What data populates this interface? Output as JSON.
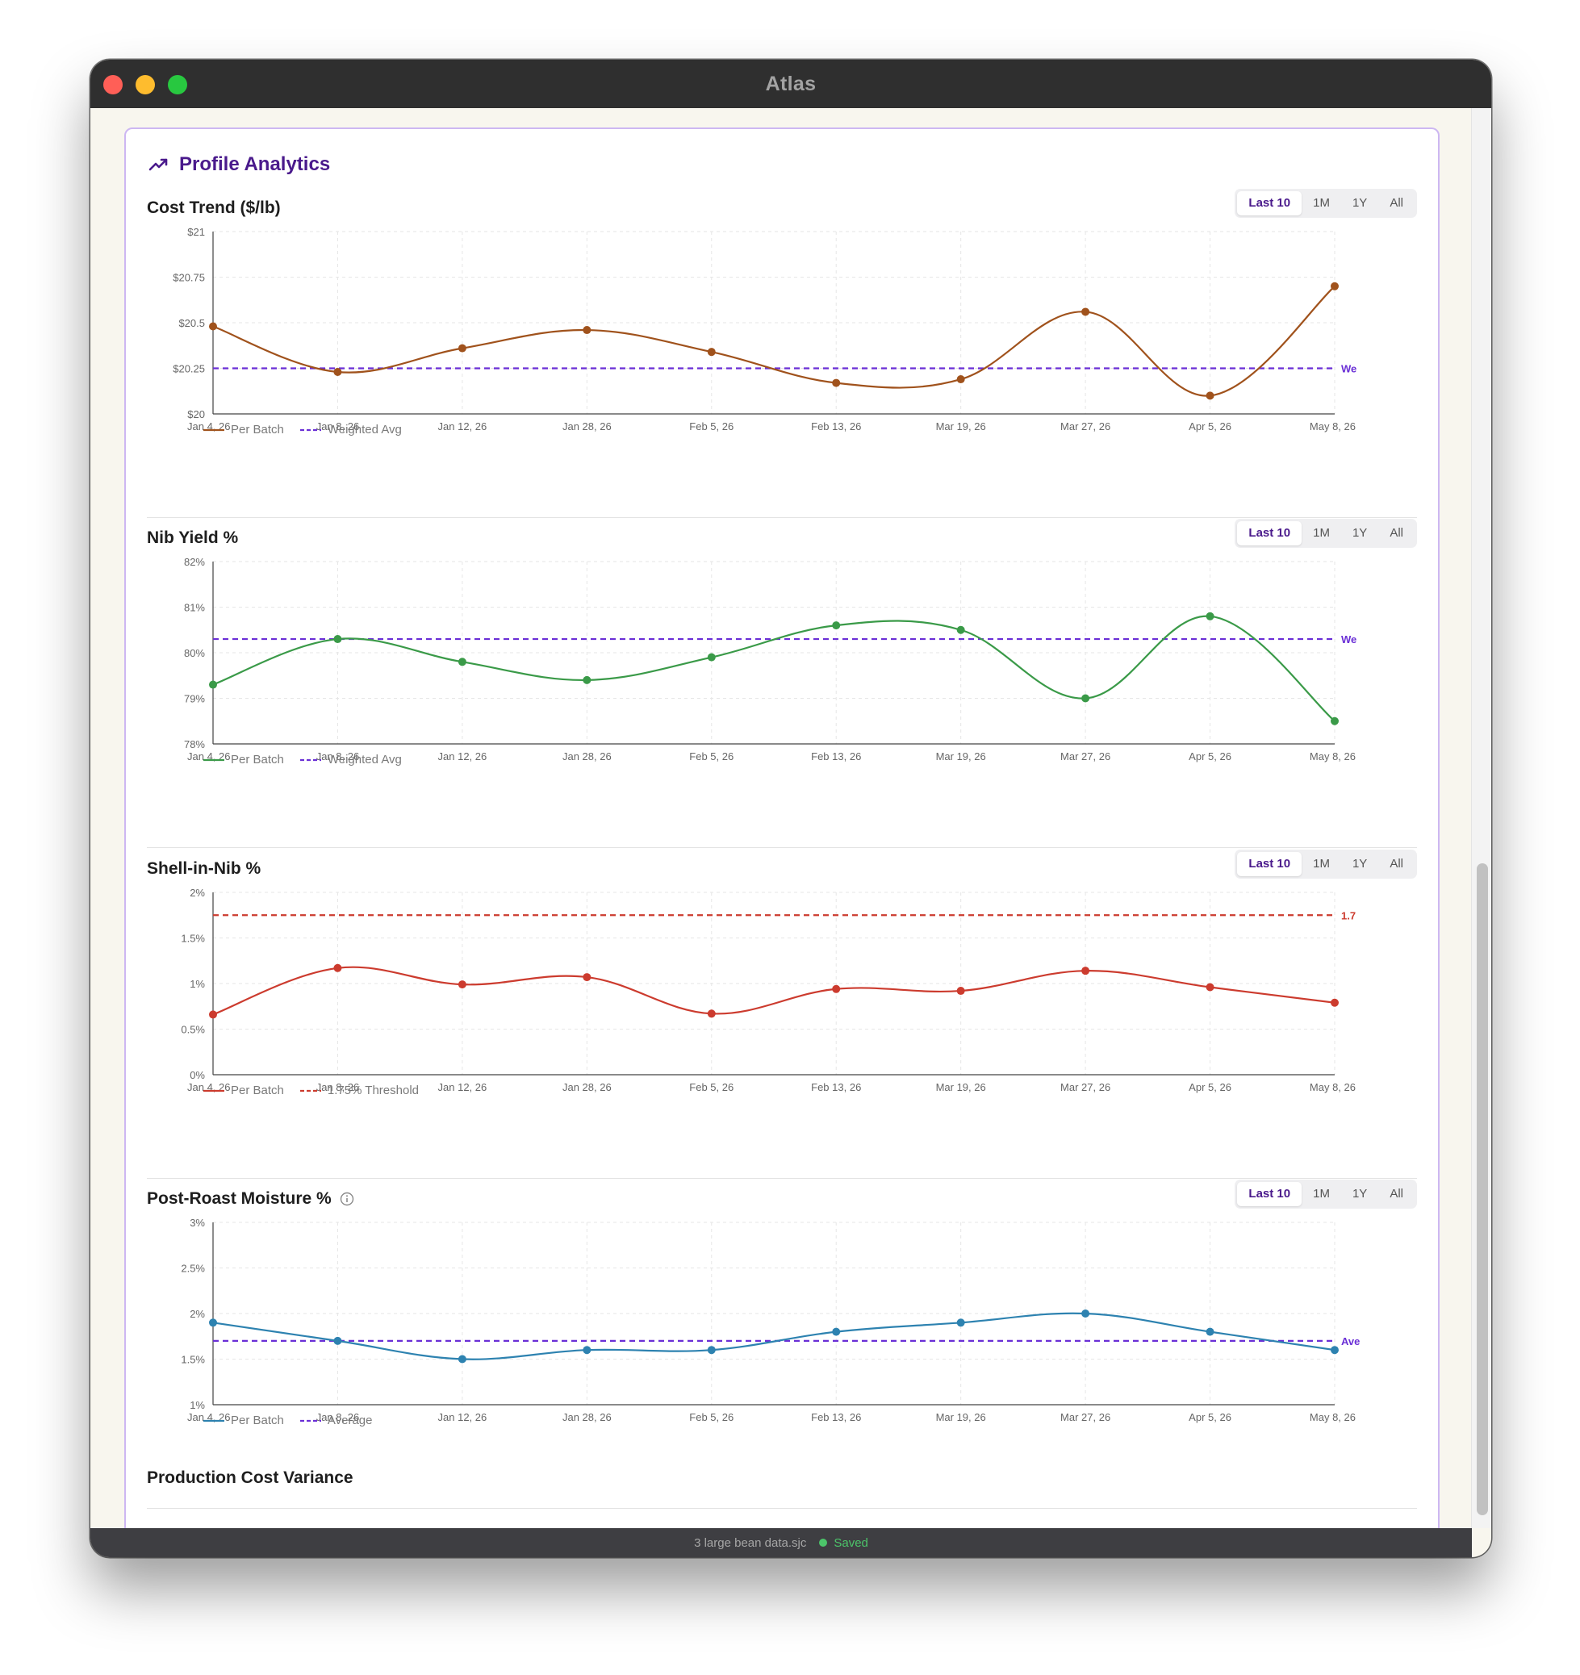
{
  "window": {
    "title": "Atlas"
  },
  "panel": {
    "title": "Profile Analytics",
    "next_section_title": "Production Cost Variance"
  },
  "range_buttons": [
    "Last 10",
    "1M",
    "1Y",
    "All"
  ],
  "charts": [
    {
      "title": "Cost Trend ($/lb)",
      "series_color": "#a0521c",
      "ref_color": "#6a2fd6",
      "legend": [
        "Per Batch",
        "Weighted Avg"
      ],
      "ref_label": "We",
      "has_info": false
    },
    {
      "title": "Nib Yield %",
      "series_color": "#3a9a48",
      "ref_color": "#6a2fd6",
      "legend": [
        "Per Batch",
        "Weighted Avg"
      ],
      "ref_label": "We",
      "has_info": false
    },
    {
      "title": "Shell-in-Nib %",
      "series_color": "#cc3b2e",
      "ref_color": "#cc3b2e",
      "legend": [
        "Per Batch",
        "1.75% Threshold"
      ],
      "ref_label": "1.7",
      "has_info": false
    },
    {
      "title": "Post-Roast Moisture %",
      "series_color": "#2d82b0",
      "ref_color": "#6a2fd6",
      "legend": [
        "Per Batch",
        "Average"
      ],
      "ref_label": "Ave",
      "has_info": true
    }
  ],
  "chart_data": [
    {
      "type": "line",
      "x": [
        "Jan 4, 26",
        "Jan 8, 26",
        "Jan 12, 26",
        "Jan 28, 26",
        "Feb 5, 26",
        "Feb 13, 26",
        "Mar 19, 26",
        "Mar 27, 26",
        "Apr 5, 26",
        "May 8, 26"
      ],
      "series": [
        {
          "name": "Per Batch",
          "values": [
            20.48,
            20.23,
            20.36,
            20.46,
            20.34,
            20.17,
            20.19,
            20.56,
            20.1,
            20.7
          ]
        }
      ],
      "reference": {
        "name": "Weighted Avg",
        "value": 20.25
      },
      "yticks": [
        "$20",
        "$20.25",
        "$20.5",
        "$20.75",
        "$21"
      ],
      "ylim": [
        20,
        21
      ]
    },
    {
      "type": "line",
      "x": [
        "Jan 4, 26",
        "Jan 8, 26",
        "Jan 12, 26",
        "Jan 28, 26",
        "Feb 5, 26",
        "Feb 13, 26",
        "Mar 19, 26",
        "Mar 27, 26",
        "Apr 5, 26",
        "May 8, 26"
      ],
      "series": [
        {
          "name": "Per Batch",
          "values": [
            79.3,
            80.3,
            79.8,
            79.4,
            79.9,
            80.6,
            80.5,
            79.0,
            80.8,
            78.5
          ]
        }
      ],
      "reference": {
        "name": "Weighted Avg",
        "value": 80.3
      },
      "yticks": [
        "78%",
        "79%",
        "80%",
        "81%",
        "82%"
      ],
      "ylim": [
        78,
        82
      ]
    },
    {
      "type": "line",
      "x": [
        "Jan 4, 26",
        "Jan 8, 26",
        "Jan 12, 26",
        "Jan 28, 26",
        "Feb 5, 26",
        "Feb 13, 26",
        "Mar 19, 26",
        "Mar 27, 26",
        "Apr 5, 26",
        "May 8, 26"
      ],
      "series": [
        {
          "name": "Per Batch",
          "values": [
            0.66,
            1.17,
            0.99,
            1.07,
            0.67,
            0.94,
            0.92,
            1.14,
            0.96,
            0.79
          ]
        }
      ],
      "reference": {
        "name": "1.75% Threshold",
        "value": 1.75
      },
      "yticks": [
        "0%",
        "0.5%",
        "1%",
        "1.5%",
        "2%"
      ],
      "ylim": [
        0,
        2
      ]
    },
    {
      "type": "line",
      "x": [
        "Jan 4, 26",
        "Jan 8, 26",
        "Jan 12, 26",
        "Jan 28, 26",
        "Feb 5, 26",
        "Feb 13, 26",
        "Mar 19, 26",
        "Mar 27, 26",
        "Apr 5, 26",
        "May 8, 26"
      ],
      "series": [
        {
          "name": "Per Batch",
          "values": [
            1.9,
            1.7,
            1.5,
            1.6,
            1.6,
            1.8,
            1.9,
            2.0,
            1.8,
            1.6
          ]
        }
      ],
      "reference": {
        "name": "Average",
        "value": 1.7
      },
      "yticks": [
        "1%",
        "1.5%",
        "2%",
        "2.5%",
        "3%"
      ],
      "ylim": [
        1,
        3
      ]
    }
  ],
  "statusbar": {
    "filename": "3 large bean data.sjc",
    "status": "Saved"
  }
}
